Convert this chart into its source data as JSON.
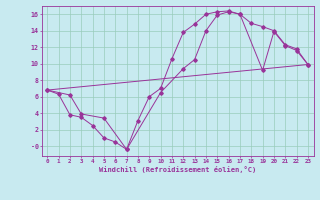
{
  "xlabel": "Windchill (Refroidissement éolien,°C)",
  "background_color": "#c8eaf0",
  "line_color": "#993399",
  "grid_color": "#99ccbb",
  "xlim": [
    -0.5,
    23.5
  ],
  "ylim": [
    -1.2,
    17.0
  ],
  "yticks": [
    0,
    2,
    4,
    6,
    8,
    10,
    12,
    14,
    16
  ],
  "ytick_labels": [
    "-0",
    "2",
    "4",
    "6",
    "8",
    "10",
    "12",
    "14",
    "16"
  ],
  "xticks": [
    0,
    1,
    2,
    3,
    4,
    5,
    6,
    7,
    8,
    9,
    10,
    11,
    12,
    13,
    14,
    15,
    16,
    17,
    18,
    19,
    20,
    21,
    22,
    23
  ],
  "line1_x": [
    0,
    1,
    2,
    3,
    4,
    5,
    6,
    7,
    8,
    9,
    10,
    11,
    12,
    13,
    14,
    15,
    16,
    17,
    18,
    19,
    20,
    21,
    22,
    23
  ],
  "line1_y": [
    6.8,
    6.3,
    3.8,
    3.5,
    2.5,
    1.0,
    0.5,
    -0.4,
    3.1,
    6.0,
    7.0,
    10.6,
    13.8,
    14.8,
    16.0,
    16.3,
    16.4,
    16.0,
    14.9,
    14.5,
    14.0,
    12.3,
    11.8,
    9.9
  ],
  "line2_x": [
    0,
    2,
    3,
    5,
    7,
    10,
    12,
    13,
    14,
    15,
    16,
    17,
    19,
    20,
    21,
    22,
    23
  ],
  "line2_y": [
    6.8,
    6.2,
    3.9,
    3.4,
    -0.4,
    6.5,
    9.4,
    10.5,
    14.0,
    15.9,
    16.3,
    16.0,
    9.2,
    13.9,
    12.2,
    11.6,
    9.9
  ],
  "line3_x": [
    0,
    23
  ],
  "line3_y": [
    6.8,
    9.9
  ]
}
